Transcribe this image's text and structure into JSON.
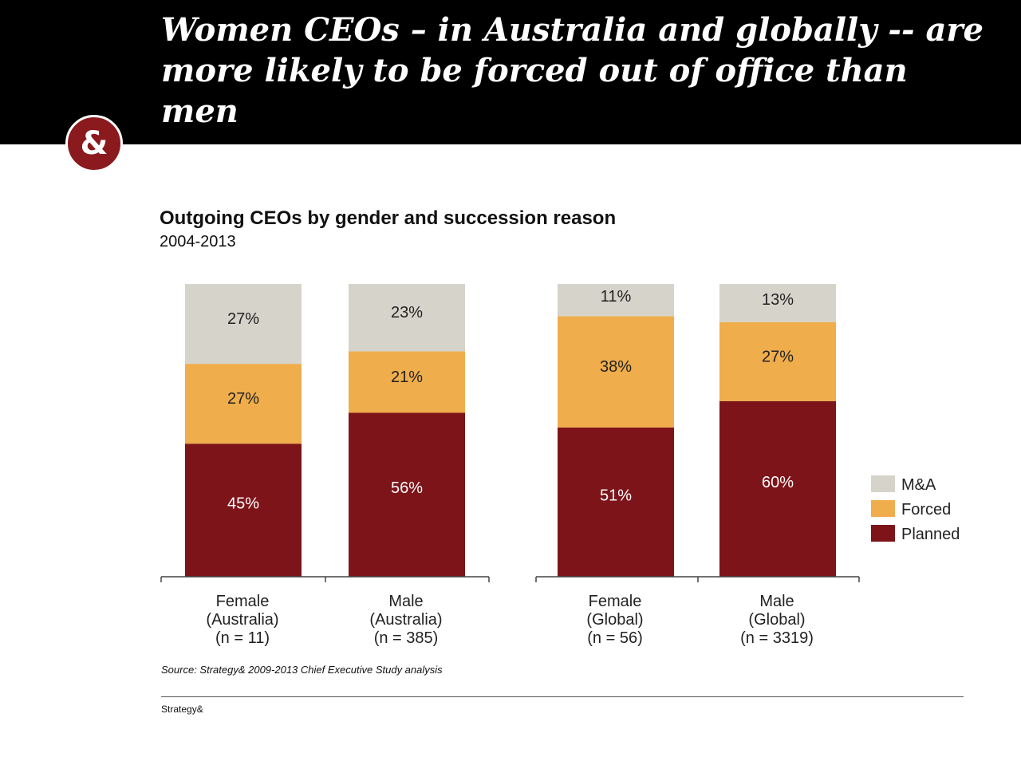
{
  "headline": "Women CEOs – in Australia and globally -- are more likely to be forced out of office than men",
  "logo": {
    "glyph": "&",
    "icon": "ampersand-logo-icon",
    "color": "#8b1a1f"
  },
  "chart_data": {
    "type": "bar",
    "stacked": true,
    "title": "Outgoing CEOs by gender and succession reason",
    "subtitle": "2004-2013",
    "categories": [
      [
        "Female",
        "(Australia)",
        "(n = 11)"
      ],
      [
        "Male",
        "(Australia)",
        "(n = 385)"
      ],
      [
        "Female",
        "(Global)",
        "(n = 56)"
      ],
      [
        "Male",
        "(Global)",
        "(n = 3319)"
      ]
    ],
    "groups": [
      {
        "name": "Australia",
        "category_indices": [
          0,
          1
        ]
      },
      {
        "name": "Global",
        "category_indices": [
          2,
          3
        ]
      }
    ],
    "series": [
      {
        "name": "Planned",
        "color": "#7d1419",
        "label_color": "#ffffff",
        "values": [
          45,
          56,
          51,
          60
        ],
        "labels": [
          "45%",
          "56%",
          "51%",
          "60%"
        ]
      },
      {
        "name": "Forced",
        "color": "#f0ad4c",
        "label_color": "#222222",
        "values": [
          27,
          21,
          38,
          27
        ],
        "labels": [
          "27%",
          "21%",
          "38%",
          "27%"
        ]
      },
      {
        "name": "M&A",
        "color": "#d6d3ca",
        "label_color": "#222222",
        "values": [
          27,
          23,
          11,
          13
        ],
        "labels": [
          "27%",
          "23%",
          "11%",
          "13%"
        ]
      }
    ],
    "legend": {
      "placement": "right",
      "order": [
        "M&A",
        "Forced",
        "Planned"
      ]
    },
    "ylim": [
      0,
      100
    ],
    "grid": false
  },
  "source": "Source: Strategy& 2009-2013 Chief Executive Study analysis",
  "footer": "Strategy&"
}
